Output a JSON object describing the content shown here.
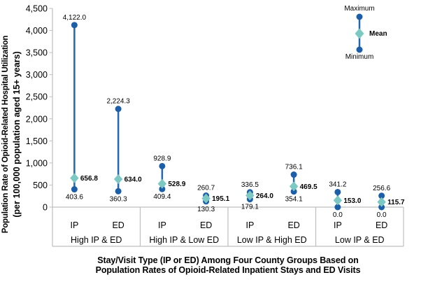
{
  "colors": {
    "marker_blue": "#1c5fa8",
    "stem_blue": "#2268b0",
    "mean_teal": "#7cc8c3",
    "axis_line": "#bfbfbf",
    "text": "#000000",
    "background": "#ffffff"
  },
  "y_axis": {
    "title_line1": "Population Rate of Opioid-Related Hospital Utilization",
    "title_line2": "(per 100,000 population aged 15+ years)",
    "ticks": [
      "4,500",
      "4,000",
      "3,500",
      "3,000",
      "2,500",
      "2,000",
      "1,500",
      "1,000",
      "500",
      "0"
    ]
  },
  "x_axis": {
    "title_line1": "Stay/Visit Type (IP or ED) Among Four County Groups Based on",
    "title_line2": "Population Rates of Opioid-Related Inpatient Stays and ED Visits"
  },
  "legend": {
    "max_label": "Maximum",
    "mean_label": "Mean",
    "min_label": "Minimum"
  },
  "chart_data": {
    "type": "dumbbell-range",
    "title": "",
    "xlabel": "Stay/Visit Type (IP or ED) Among Four County Groups Based on Population Rates of Opioid-Related Inpatient Stays and ED Visits",
    "ylabel": "Population Rate of Opioid-Related Hospital Utilization (per 100,000 population aged 15+ years)",
    "ylim": [
      0,
      4500
    ],
    "ytick_step": 500,
    "grid": false,
    "legend": [
      "Maximum",
      "Mean",
      "Minimum"
    ],
    "legend_position": "top-right",
    "groups": [
      {
        "label": "High IP & ED",
        "series": [
          {
            "category": "IP",
            "max": 4122.0,
            "mean": 656.8,
            "min": 403.6
          },
          {
            "category": "ED",
            "max": 2224.3,
            "mean": 634.0,
            "min": 360.3
          }
        ]
      },
      {
        "label": "High IP & Low ED",
        "series": [
          {
            "category": "IP",
            "max": 928.9,
            "mean": 528.9,
            "min": 409.4
          },
          {
            "category": "ED",
            "max": 260.7,
            "mean": 195.1,
            "min": 130.3
          }
        ]
      },
      {
        "label": "Low IP & High ED",
        "series": [
          {
            "category": "IP",
            "max": 336.5,
            "mean": 264.0,
            "min": 179.1
          },
          {
            "category": "ED",
            "max": 736.1,
            "mean": 469.5,
            "min": 354.1
          }
        ]
      },
      {
        "label": "Low IP & ED",
        "series": [
          {
            "category": "IP",
            "max": 341.2,
            "mean": 153.0,
            "min": 0.0
          },
          {
            "category": "ED",
            "max": 256.6,
            "mean": 115.7,
            "min": 0.0
          }
        ]
      }
    ]
  }
}
